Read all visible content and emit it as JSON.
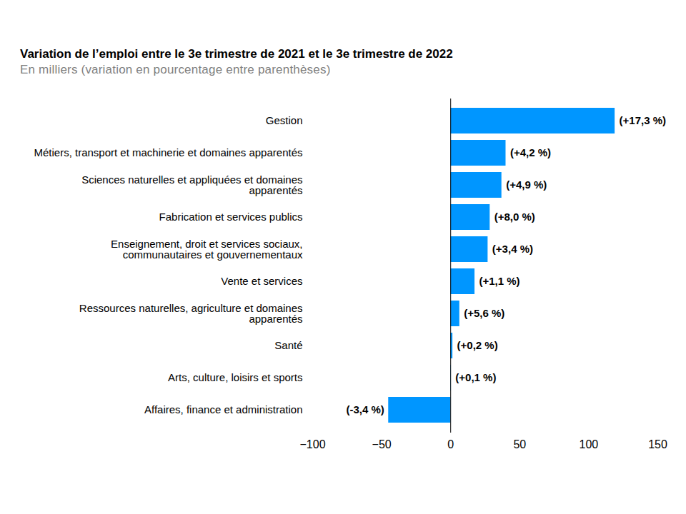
{
  "chart_data": {
    "type": "bar",
    "orientation": "horizontal",
    "title": "Variation de l’emploi entre le 3e trimestre de 2021 et le 3e trimestre de 2022",
    "subtitle": "En milliers (variation en pourcentage entre parenthèses)",
    "categories": [
      "Gestion",
      "Métiers, transport et machinerie et domaines apparentés",
      "Sciences naturelles et appliquées et domaines apparentés",
      "Fabrication et services publics",
      "Enseignement, droit et services sociaux, communautaires et gouvernementaux",
      "Vente et services",
      "Ressources naturelles, agriculture et domaines apparentés",
      "Santé",
      "Arts, culture, loisirs et sports",
      "Affaires, finance et administration"
    ],
    "values": [
      119,
      40,
      37,
      28.5,
      27,
      17.5,
      6.5,
      1.5,
      0.3,
      -45
    ],
    "percent_changes": [
      17.3,
      4.2,
      4.9,
      8.0,
      3.4,
      1.1,
      5.6,
      0.2,
      0.1,
      -3.4
    ],
    "percent_labels": [
      "(+17,3 %)",
      "(+4,2 %)",
      "(+4,9 %)",
      "(+8,0 %)",
      "(+3,4 %)",
      "(+1,1 %)",
      "(+5,6 %)",
      "(+0,2 %)",
      "(+0,1 %)",
      "(-3,4 %)"
    ],
    "color": "#0096ff",
    "xlim": [
      -100,
      150
    ],
    "xticks": [
      -100,
      -50,
      0,
      50,
      100,
      150
    ],
    "grid": false
  }
}
